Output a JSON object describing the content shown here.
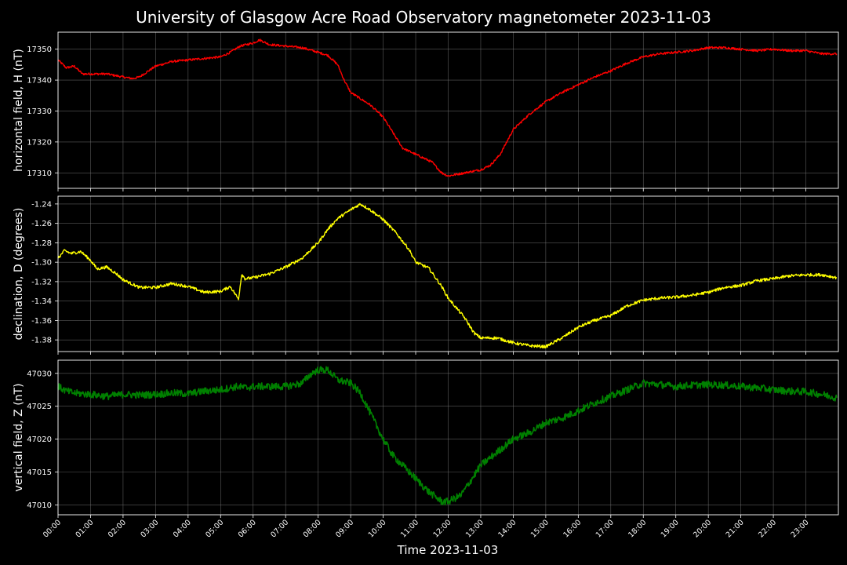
{
  "title": "University of Glasgow Acre Road Observatory magnetometer 2023-11-03",
  "xlabel": "Time 2023-11-03",
  "colors": {
    "background": "#000000",
    "H": "#ff0000",
    "D": "#ffff00",
    "Z": "#008000",
    "grid": "#808080"
  },
  "chart_data": [
    {
      "type": "line",
      "ylabel": "horizontal field, H (nT)",
      "ylim": [
        17305,
        17355.5
      ],
      "yticks": [
        17310,
        17320,
        17330,
        17340,
        17350
      ],
      "grid": true,
      "series": [
        {
          "color": "#ff0000",
          "x": [
            0,
            0.25,
            0.5,
            0.75,
            1,
            1.5,
            2,
            2.3,
            2.5,
            3,
            3.5,
            4,
            4.5,
            5,
            5.3,
            5.6,
            6,
            6.2,
            6.5,
            7,
            7.5,
            8,
            8.3,
            8.6,
            8.8,
            9,
            9.3,
            9.6,
            10,
            10.3,
            10.6,
            11,
            11.5,
            11.8,
            12,
            12.5,
            13,
            13.3,
            13.6,
            14,
            14.5,
            15,
            15.5,
            16,
            16.5,
            17,
            17.5,
            18,
            18.5,
            19,
            19.5,
            20,
            20.5,
            21,
            21.5,
            22,
            22.5,
            23,
            23.5,
            23.95
          ],
          "values": [
            17346.5,
            17344,
            17344.5,
            17342,
            17342,
            17342,
            17341,
            17340.5,
            17341,
            17344.5,
            17346,
            17346.5,
            17347,
            17347.5,
            17349,
            17351,
            17352,
            17353,
            17351.5,
            17351,
            17350.5,
            17349,
            17348,
            17345,
            17340,
            17336,
            17334,
            17332,
            17328,
            17323,
            17318,
            17316,
            17313.5,
            17310,
            17309,
            17310,
            17311,
            17312.5,
            17316,
            17324,
            17329,
            17333,
            17336,
            17338.5,
            17341,
            17343,
            17345.5,
            17347.5,
            17348.5,
            17349,
            17349.5,
            17350.5,
            17350.5,
            17350,
            17349.5,
            17350,
            17349.5,
            17349.5,
            17348.5,
            17348.5
          ]
        }
      ]
    },
    {
      "type": "line",
      "ylabel": "declination, D (degrees)",
      "ylim": [
        -1.392,
        -1.232
      ],
      "yticks": [
        -1.38,
        -1.36,
        -1.34,
        -1.32,
        -1.3,
        -1.28,
        -1.26,
        -1.24
      ],
      "grid": true,
      "series": [
        {
          "color": "#ffff00",
          "x": [
            0,
            0.2,
            0.4,
            0.7,
            1,
            1.2,
            1.5,
            1.8,
            2,
            2.5,
            3,
            3.5,
            4,
            4.5,
            5,
            5.3,
            5.55,
            5.65,
            5.75,
            6,
            6.5,
            7,
            7.5,
            8,
            8.3,
            8.6,
            9,
            9.3,
            9.6,
            10,
            10.4,
            10.8,
            11,
            11.4,
            11.8,
            12,
            12.5,
            12.8,
            13,
            13.5,
            14,
            14.5,
            15,
            15.5,
            16,
            16.5,
            17,
            17.5,
            18,
            18.5,
            19,
            19.5,
            20,
            20.5,
            21,
            21.5,
            22,
            22.5,
            23,
            23.5,
            23.95
          ],
          "values": [
            -1.296,
            -1.288,
            -1.291,
            -1.289,
            -1.298,
            -1.307,
            -1.305,
            -1.312,
            -1.318,
            -1.326,
            -1.326,
            -1.322,
            -1.325,
            -1.331,
            -1.33,
            -1.325,
            -1.338,
            -1.312,
            -1.317,
            -1.316,
            -1.312,
            -1.305,
            -1.296,
            -1.28,
            -1.266,
            -1.255,
            -1.246,
            -1.24,
            -1.246,
            -1.256,
            -1.27,
            -1.287,
            -1.3,
            -1.306,
            -1.325,
            -1.337,
            -1.357,
            -1.373,
            -1.378,
            -1.378,
            -1.383,
            -1.386,
            -1.387,
            -1.378,
            -1.367,
            -1.36,
            -1.355,
            -1.345,
            -1.339,
            -1.337,
            -1.336,
            -1.334,
            -1.331,
            -1.326,
            -1.324,
            -1.319,
            -1.317,
            -1.314,
            -1.313,
            -1.313,
            -1.316
          ]
        }
      ]
    },
    {
      "type": "line",
      "ylabel": "vertical field, Z (nT)",
      "ylim": [
        47008.5,
        47032
      ],
      "yticks": [
        47010,
        47015,
        47020,
        47025,
        47030
      ],
      "grid": true,
      "series": [
        {
          "color": "#008000",
          "x": [
            0,
            0.25,
            0.5,
            1,
            1.5,
            2,
            2.5,
            3,
            3.5,
            4,
            4.5,
            5,
            5.3,
            5.5,
            5.8,
            6,
            6.5,
            7,
            7.5,
            7.8,
            8,
            8.3,
            8.6,
            9,
            9.3,
            9.6,
            10,
            10.3,
            10.6,
            11,
            11.4,
            11.8,
            12,
            12.4,
            12.8,
            13,
            13.5,
            14,
            14.5,
            15,
            15.5,
            16,
            16.5,
            17,
            17.5,
            18,
            18.5,
            19,
            19.5,
            20,
            20.5,
            21,
            21.5,
            22,
            22.5,
            23,
            23.5,
            23.95
          ],
          "values": [
            47028,
            47027.3,
            47027,
            47026.8,
            47026.5,
            47026.8,
            47026.7,
            47026.8,
            47027,
            47026.9,
            47027.3,
            47027.5,
            47027.8,
            47028,
            47027.8,
            47028,
            47028,
            47028,
            47028.5,
            47030,
            47030.5,
            47030.5,
            47029,
            47028.5,
            47027,
            47024,
            47020,
            47017.5,
            47016,
            47014,
            47012,
            47010.5,
            47010.5,
            47011.5,
            47014.5,
            47016,
            47018,
            47020,
            47021,
            47022.5,
            47023.2,
            47024.3,
            47025.5,
            47026.5,
            47027.5,
            47028.5,
            47028.3,
            47028,
            47028.2,
            47028.3,
            47028.2,
            47028,
            47027.8,
            47027.5,
            47027.3,
            47027.2,
            47026.8,
            47026.3
          ]
        }
      ]
    }
  ],
  "xticks": [
    "00:00",
    "01:00",
    "02:00",
    "03:00",
    "04:00",
    "05:00",
    "06:00",
    "07:00",
    "08:00",
    "09:00",
    "10:00",
    "11:00",
    "12:00",
    "13:00",
    "14:00",
    "15:00",
    "16:00",
    "17:00",
    "18:00",
    "19:00",
    "20:00",
    "21:00",
    "22:00",
    "23:00"
  ],
  "xlim": [
    0,
    24
  ]
}
